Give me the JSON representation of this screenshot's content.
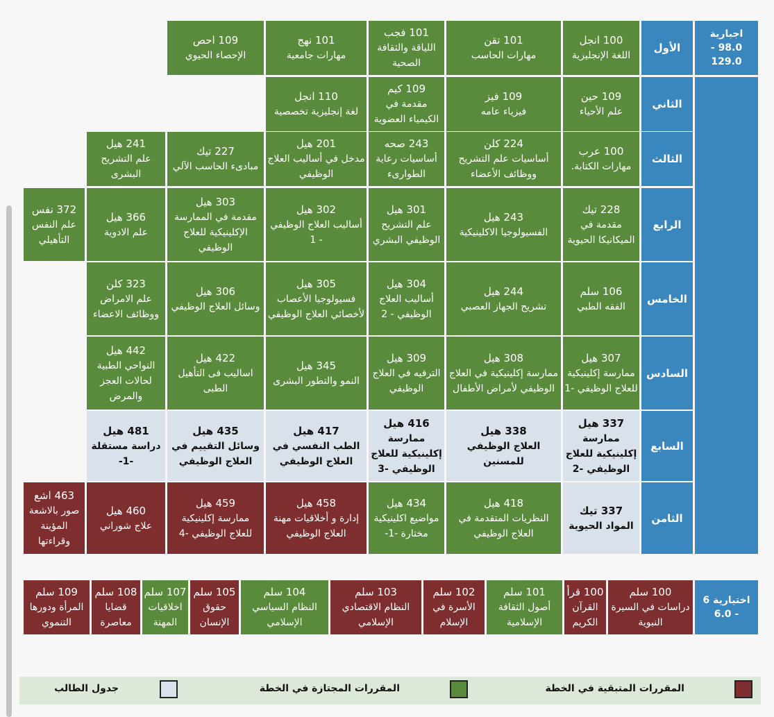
{
  "colors": {
    "remaining": "#7e2e2e",
    "passed": "#5a8a3c",
    "student_schedule": "#d9e2ea",
    "level_header": "#3a86bf"
  },
  "mandatory": {
    "category_label": "اجبارية",
    "credits": "98.0 - 129.0",
    "levels": [
      "الأول",
      "الثاني",
      "الثالث",
      "الرابع",
      "الخامس",
      "السادس",
      "السابع",
      "الثامن"
    ],
    "rows": [
      [
        {
          "code": "100 انجل",
          "name": "اللغة الإنجليزية"
        },
        {
          "code": "101 تقن",
          "name": "مهارات الحاسب"
        },
        {
          "code": "101 فجب",
          "name": "اللياقة والثقافة الصحية"
        },
        {
          "code": "101 نهج",
          "name": "مهارات جامعية"
        },
        {
          "code": "109 احص",
          "name": "الإحصاء الحيوي"
        }
      ],
      [
        {
          "code": "109 حين",
          "name": "علم الأحياء"
        },
        {
          "code": "109 فيز",
          "name": "فيزياء عامه"
        },
        {
          "code": "109 كيم",
          "name": "مقدمة في الكيمياء العضوية"
        },
        {
          "code": "110 انجل",
          "name": "لغة إنجليزية تخصصية"
        }
      ],
      [
        {
          "code": "100 عرب",
          "name": "مهارات الكتابة."
        },
        {
          "code": "224 كلن",
          "name": "أساسيات علم التشريح ووظائف الأعضاء"
        },
        {
          "code": "243 صحه",
          "name": "أساسيات رعاية الطوارىء"
        },
        {
          "code": "201 هيل",
          "name": "مدخل في أساليب العلاج الوظيفي"
        },
        {
          "code": "227 تيك",
          "name": "مبادىء الحاسب الآلي"
        },
        {
          "code": "241 هيل",
          "name": "علم التشريح البشرى"
        }
      ],
      [
        {
          "code": "228 تيك",
          "name": "مقدمة في الميكانيكا الحيوية"
        },
        {
          "code": "243 هيل",
          "name": "الفسيولوجيا الاكلينيكية"
        },
        {
          "code": "301 هيل",
          "name": "علم التشريح الوظيفي البشري"
        },
        {
          "code": "302 هيل",
          "name": "أساليب العلاج الوظيفي - 1"
        },
        {
          "code": "303 هيل",
          "name": "مقدمة في الممارسة الإكلينيكية للعلاج الوظيفي"
        },
        {
          "code": "366 هيل",
          "name": "علم الادوية"
        },
        {
          "code": "372 نفس",
          "name": "علم النفس التأهيلي"
        }
      ],
      [
        {
          "code": "106 سلم",
          "name": "الفقه الطبي"
        },
        {
          "code": "244 هيل",
          "name": "تشريح الجهاز العصبي"
        },
        {
          "code": "304 هيل",
          "name": "أساليب العلاج الوظيفي - 2"
        },
        {
          "code": "305 هيل",
          "name": "فسيولوجيا الأعصاب لأخصائي العلاج الوظيفي"
        },
        {
          "code": "306 هيل",
          "name": "وسائل العلاج الوظيفي"
        },
        {
          "code": "323 كلن",
          "name": "علم الامراض ووظائف الاعضاء"
        }
      ],
      [
        {
          "code": "307 هيل",
          "name": "ممارسة إكلينيكية للعلاج الوظيفي -1"
        },
        {
          "code": "308 هيل",
          "name": "ممارسة إكلينيكية في العلاج الوظيفي لأمراض الأطفال"
        },
        {
          "code": "309 هيل",
          "name": "الترفيه في العلاج الوظيفي"
        },
        {
          "code": "345 هيل",
          "name": "النمو والتطور البشرى"
        },
        {
          "code": "422 هيل",
          "name": "اساليب فى التأهيل الطبى"
        },
        {
          "code": "442 هيل",
          "name": "النواحي الطبية لحالات العجز والمرض"
        }
      ],
      [
        {
          "code": "337 هيل",
          "name": "ممارسة إكلينيكية للعلاج الوظيفي -2"
        },
        {
          "code": "338 هيل",
          "name": "العلاج الوظيفي للمسنين"
        },
        {
          "code": "416 هيل",
          "name": "ممارسة إكلينيكية للعلاج الوظيفي -3"
        },
        {
          "code": "417 هيل",
          "name": "الطب النفسي في العلاج الوظيفي"
        },
        {
          "code": "435 هيل",
          "name": "وسائل التقييم في العلاج الوظيفي"
        },
        {
          "code": "481 هيل",
          "name": "دراسة مستقلة -1-"
        }
      ],
      [
        {
          "code": "337 تيك",
          "name": "المواد الحيوية"
        },
        {
          "code": "418 هيل",
          "name": "النظريات المتقدمة في العلاج الوظيفي"
        },
        {
          "code": "434 هيل",
          "name": "مواضيع اكلينيكية مختارة -1-"
        },
        {
          "code": "458 هيل",
          "name": "إدارة و أخلاقيات مهنة العلاج الوظيفي"
        },
        {
          "code": "459 هيل",
          "name": "ممارسة إكلينيكية للعلاج الوظيفي -4"
        },
        {
          "code": "460 هيل",
          "name": "علاج شوراني"
        },
        {
          "code": "463 اشع",
          "name": "صور بالاشعة المؤينة وقراءتها"
        }
      ]
    ]
  },
  "elective": {
    "category_label": "اختيارية 6",
    "credits": "- 6.0",
    "courses": [
      {
        "code": "100 سلم",
        "name": "دراسات في السيرة النبوية"
      },
      {
        "code": "100 قرأ",
        "name": "القرآن الكريم"
      },
      {
        "code": "101 سلم",
        "name": "أصول الثقافة الإسلامية"
      },
      {
        "code": "102 سلم",
        "name": "الأسرة في الإسلام"
      },
      {
        "code": "103 سلم",
        "name": "النظام الاقتصادي الإسلامي"
      },
      {
        "code": "104 سلم",
        "name": "النظام السياسي الإسلامي"
      },
      {
        "code": "105 سلم",
        "name": "حقوق الإنسان"
      },
      {
        "code": "107 سلم",
        "name": "اخلاقيات المهنة"
      },
      {
        "code": "108 سلم",
        "name": "قضايا معاصرة"
      },
      {
        "code": "109 سلم",
        "name": "المرأة ودورها التنموي"
      }
    ]
  },
  "legend": {
    "remaining_label": "المقررات المتبقية في الخطة",
    "passed_label": "المقررات المجتازة في الخطة",
    "schedule_label": "جدول الطالب"
  }
}
